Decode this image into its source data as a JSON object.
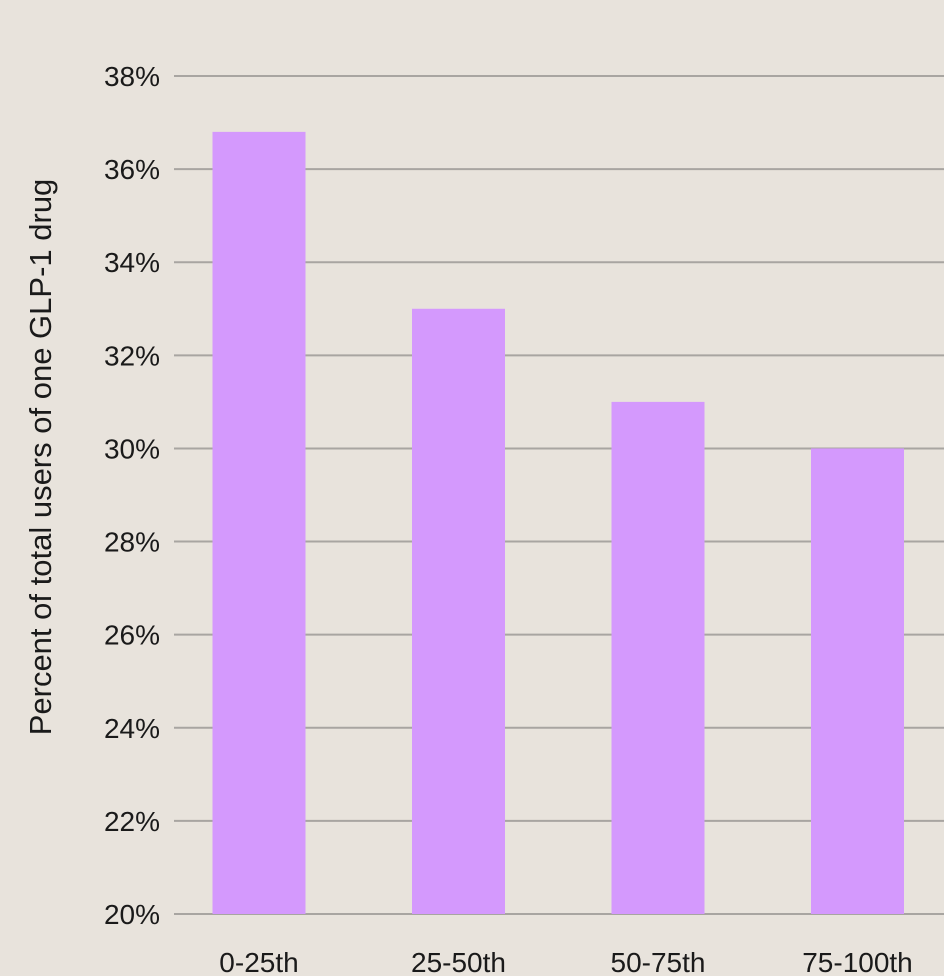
{
  "chart_data": {
    "type": "bar",
    "title": "",
    "xlabel": "",
    "ylabel": "Percent of total users of one GLP-1 drug",
    "categories": [
      "0-25th",
      "25-50th",
      "50-75th",
      "75-100th"
    ],
    "values": [
      36.8,
      33.0,
      31.0,
      30.0
    ],
    "ylim": [
      20,
      38
    ],
    "yticks": [
      "20%",
      "22%",
      "24%",
      "26%",
      "28%",
      "30%",
      "32%",
      "34%",
      "36%",
      "38%"
    ],
    "ytick_values": [
      20,
      22,
      24,
      26,
      28,
      30,
      32,
      34,
      36,
      38
    ],
    "grid": true,
    "legend": "none",
    "colors": {
      "bar": "#d499fd",
      "background": "#e8e3dc",
      "gridline": "#a8a5a1",
      "text": "#1a1a1a"
    }
  }
}
